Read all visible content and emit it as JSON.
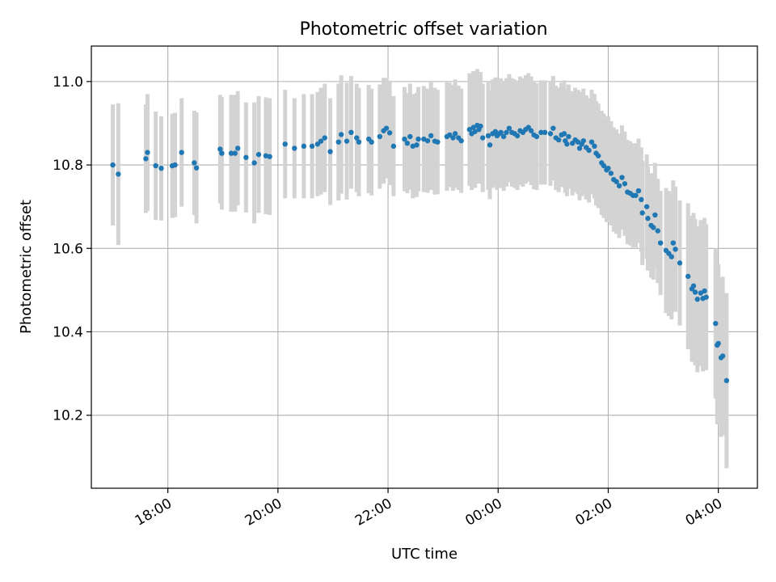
{
  "chart_data": {
    "type": "scatter",
    "title": "Photometric offset variation",
    "xlabel": "UTC time",
    "ylabel": "Photometric offset",
    "x_unit": "hours UTC (values above 24 are after midnight of the following day)",
    "xlim": [
      16.61,
      28.71
    ],
    "ylim": [
      10.025,
      11.085
    ],
    "x_ticks": [
      {
        "value": 18,
        "label": "18:00"
      },
      {
        "value": 20,
        "label": "20:00"
      },
      {
        "value": 22,
        "label": "22:00"
      },
      {
        "value": 24,
        "label": "00:00"
      },
      {
        "value": 26,
        "label": "02:00"
      },
      {
        "value": 28,
        "label": "04:00"
      }
    ],
    "y_ticks": [
      {
        "value": 10.2,
        "label": "10.2"
      },
      {
        "value": 10.4,
        "label": "10.4"
      },
      {
        "value": 10.6,
        "label": "10.6"
      },
      {
        "value": 10.8,
        "label": "10.8"
      },
      {
        "value": 11.0,
        "label": "11.0"
      }
    ],
    "grid": true,
    "marker_color": "#1f77b4",
    "errorbar_color": "#d3d3d3",
    "series": [
      {
        "points": [
          [
            17.0,
            10.8,
            0.145
          ],
          [
            17.1,
            10.778,
            0.17
          ],
          [
            17.6,
            10.815,
            0.13
          ],
          [
            17.63,
            10.83,
            0.14
          ],
          [
            17.78,
            10.798,
            0.13
          ],
          [
            17.88,
            10.792,
            0.125
          ],
          [
            18.08,
            10.798,
            0.125
          ],
          [
            18.13,
            10.8,
            0.125
          ],
          [
            18.25,
            10.83,
            0.13
          ],
          [
            18.48,
            10.805,
            0.125
          ],
          [
            18.52,
            10.793,
            0.133
          ],
          [
            18.95,
            10.838,
            0.13
          ],
          [
            18.98,
            10.828,
            0.135
          ],
          [
            19.15,
            10.828,
            0.14
          ],
          [
            19.22,
            10.828,
            0.14
          ],
          [
            19.27,
            10.84,
            0.137
          ],
          [
            19.42,
            10.818,
            0.132
          ],
          [
            19.57,
            10.805,
            0.145
          ],
          [
            19.65,
            10.825,
            0.14
          ],
          [
            19.78,
            10.822,
            0.14
          ],
          [
            19.85,
            10.82,
            0.14
          ],
          [
            20.13,
            10.85,
            0.13
          ],
          [
            20.3,
            10.84,
            0.12
          ],
          [
            20.47,
            10.845,
            0.125
          ],
          [
            20.62,
            10.845,
            0.125
          ],
          [
            20.72,
            10.85,
            0.125
          ],
          [
            20.78,
            10.857,
            0.128
          ],
          [
            20.85,
            10.865,
            0.13
          ],
          [
            20.95,
            10.832,
            0.128
          ],
          [
            21.1,
            10.855,
            0.14
          ],
          [
            21.15,
            10.873,
            0.142
          ],
          [
            21.25,
            10.857,
            0.14
          ],
          [
            21.33,
            10.878,
            0.135
          ],
          [
            21.43,
            10.865,
            0.13
          ],
          [
            21.47,
            10.855,
            0.13
          ],
          [
            21.65,
            10.862,
            0.13
          ],
          [
            21.7,
            10.855,
            0.128
          ],
          [
            21.85,
            10.868,
            0.125
          ],
          [
            21.92,
            10.882,
            0.127
          ],
          [
            21.97,
            10.888,
            0.12
          ],
          [
            22.03,
            10.877,
            0.125
          ],
          [
            22.1,
            10.845,
            0.12
          ],
          [
            22.3,
            10.862,
            0.125
          ],
          [
            22.35,
            10.852,
            0.12
          ],
          [
            22.4,
            10.868,
            0.127
          ],
          [
            22.45,
            10.845,
            0.125
          ],
          [
            22.52,
            10.848,
            0.125
          ],
          [
            22.55,
            10.862,
            0.125
          ],
          [
            22.65,
            10.862,
            0.127
          ],
          [
            22.72,
            10.858,
            0.125
          ],
          [
            22.78,
            10.87,
            0.13
          ],
          [
            22.85,
            10.857,
            0.128
          ],
          [
            22.9,
            10.855,
            0.125
          ],
          [
            23.07,
            10.868,
            0.13
          ],
          [
            23.12,
            10.872,
            0.125
          ],
          [
            23.18,
            10.865,
            0.127
          ],
          [
            23.22,
            10.875,
            0.13
          ],
          [
            23.28,
            10.865,
            0.125
          ],
          [
            23.33,
            10.858,
            0.125
          ],
          [
            23.48,
            10.885,
            0.135
          ],
          [
            23.52,
            10.875,
            0.135
          ],
          [
            23.55,
            10.89,
            0.135
          ],
          [
            23.58,
            10.88,
            0.135
          ],
          [
            23.62,
            10.895,
            0.135
          ],
          [
            23.65,
            10.885,
            0.13
          ],
          [
            23.68,
            10.893,
            0.13
          ],
          [
            23.72,
            10.865,
            0.13
          ],
          [
            23.82,
            10.87,
            0.13
          ],
          [
            23.85,
            10.848,
            0.13
          ],
          [
            23.9,
            10.875,
            0.13
          ],
          [
            23.95,
            10.88,
            0.13
          ],
          [
            23.98,
            10.87,
            0.13
          ],
          [
            24.02,
            10.875,
            0.13
          ],
          [
            24.05,
            10.878,
            0.13
          ],
          [
            24.1,
            10.868,
            0.13
          ],
          [
            24.15,
            10.878,
            0.13
          ],
          [
            24.2,
            10.888,
            0.13
          ],
          [
            24.25,
            10.878,
            0.13
          ],
          [
            24.3,
            10.875,
            0.13
          ],
          [
            24.35,
            10.87,
            0.13
          ],
          [
            24.4,
            10.882,
            0.13
          ],
          [
            24.45,
            10.878,
            0.13
          ],
          [
            24.5,
            10.885,
            0.13
          ],
          [
            24.55,
            10.89,
            0.13
          ],
          [
            24.6,
            10.882,
            0.13
          ],
          [
            24.65,
            10.872,
            0.13
          ],
          [
            24.7,
            10.868,
            0.128
          ],
          [
            24.78,
            10.878,
            0.125
          ],
          [
            24.85,
            10.878,
            0.125
          ],
          [
            24.95,
            10.875,
            0.125
          ],
          [
            25.0,
            10.888,
            0.125
          ],
          [
            25.05,
            10.865,
            0.125
          ],
          [
            25.1,
            10.86,
            0.125
          ],
          [
            25.15,
            10.872,
            0.125
          ],
          [
            25.2,
            10.875,
            0.128
          ],
          [
            25.22,
            10.858,
            0.125
          ],
          [
            25.25,
            10.85,
            0.125
          ],
          [
            25.28,
            10.868,
            0.125
          ],
          [
            25.35,
            10.852,
            0.125
          ],
          [
            25.4,
            10.86,
            0.125
          ],
          [
            25.45,
            10.855,
            0.125
          ],
          [
            25.48,
            10.84,
            0.125
          ],
          [
            25.52,
            10.85,
            0.125
          ],
          [
            25.55,
            10.858,
            0.125
          ],
          [
            25.6,
            10.842,
            0.125
          ],
          [
            25.65,
            10.835,
            0.125
          ],
          [
            25.7,
            10.855,
            0.125
          ],
          [
            25.75,
            10.845,
            0.125
          ],
          [
            25.78,
            10.828,
            0.125
          ],
          [
            25.82,
            10.822,
            0.125
          ],
          [
            25.88,
            10.805,
            0.125
          ],
          [
            25.92,
            10.798,
            0.125
          ],
          [
            25.97,
            10.788,
            0.125
          ],
          [
            26.0,
            10.792,
            0.125
          ],
          [
            26.05,
            10.78,
            0.125
          ],
          [
            26.1,
            10.765,
            0.125
          ],
          [
            26.15,
            10.76,
            0.125
          ],
          [
            26.2,
            10.75,
            0.125
          ],
          [
            26.25,
            10.77,
            0.125
          ],
          [
            26.3,
            10.755,
            0.125
          ],
          [
            26.35,
            10.735,
            0.125
          ],
          [
            26.4,
            10.732,
            0.125
          ],
          [
            26.45,
            10.727,
            0.125
          ],
          [
            26.5,
            10.727,
            0.125
          ],
          [
            26.55,
            10.738,
            0.125
          ],
          [
            26.6,
            10.717,
            0.125
          ],
          [
            26.62,
            10.685,
            0.125
          ],
          [
            26.7,
            10.7,
            0.125
          ],
          [
            26.72,
            10.672,
            0.125
          ],
          [
            26.78,
            10.655,
            0.125
          ],
          [
            26.82,
            10.65,
            0.125
          ],
          [
            26.85,
            10.68,
            0.125
          ],
          [
            26.9,
            10.642,
            0.125
          ],
          [
            26.95,
            10.613,
            0.125
          ],
          [
            27.05,
            10.595,
            0.15
          ],
          [
            27.1,
            10.588,
            0.15
          ],
          [
            27.15,
            10.58,
            0.15
          ],
          [
            27.18,
            10.613,
            0.15
          ],
          [
            27.22,
            10.598,
            0.15
          ],
          [
            27.3,
            10.565,
            0.15
          ],
          [
            27.45,
            10.533,
            0.175
          ],
          [
            27.52,
            10.503,
            0.175
          ],
          [
            27.55,
            10.51,
            0.175
          ],
          [
            27.58,
            10.495,
            0.175
          ],
          [
            27.62,
            10.478,
            0.175
          ],
          [
            27.68,
            10.493,
            0.175
          ],
          [
            27.72,
            10.48,
            0.175
          ],
          [
            27.75,
            10.498,
            0.175
          ],
          [
            27.78,
            10.483,
            0.175
          ],
          [
            27.95,
            10.42,
            0.18
          ],
          [
            27.98,
            10.368,
            0.19
          ],
          [
            28.0,
            10.372,
            0.19
          ],
          [
            28.05,
            10.338,
            0.19
          ],
          [
            28.08,
            10.342,
            0.19
          ],
          [
            28.15,
            10.283,
            0.21
          ]
        ]
      }
    ]
  }
}
